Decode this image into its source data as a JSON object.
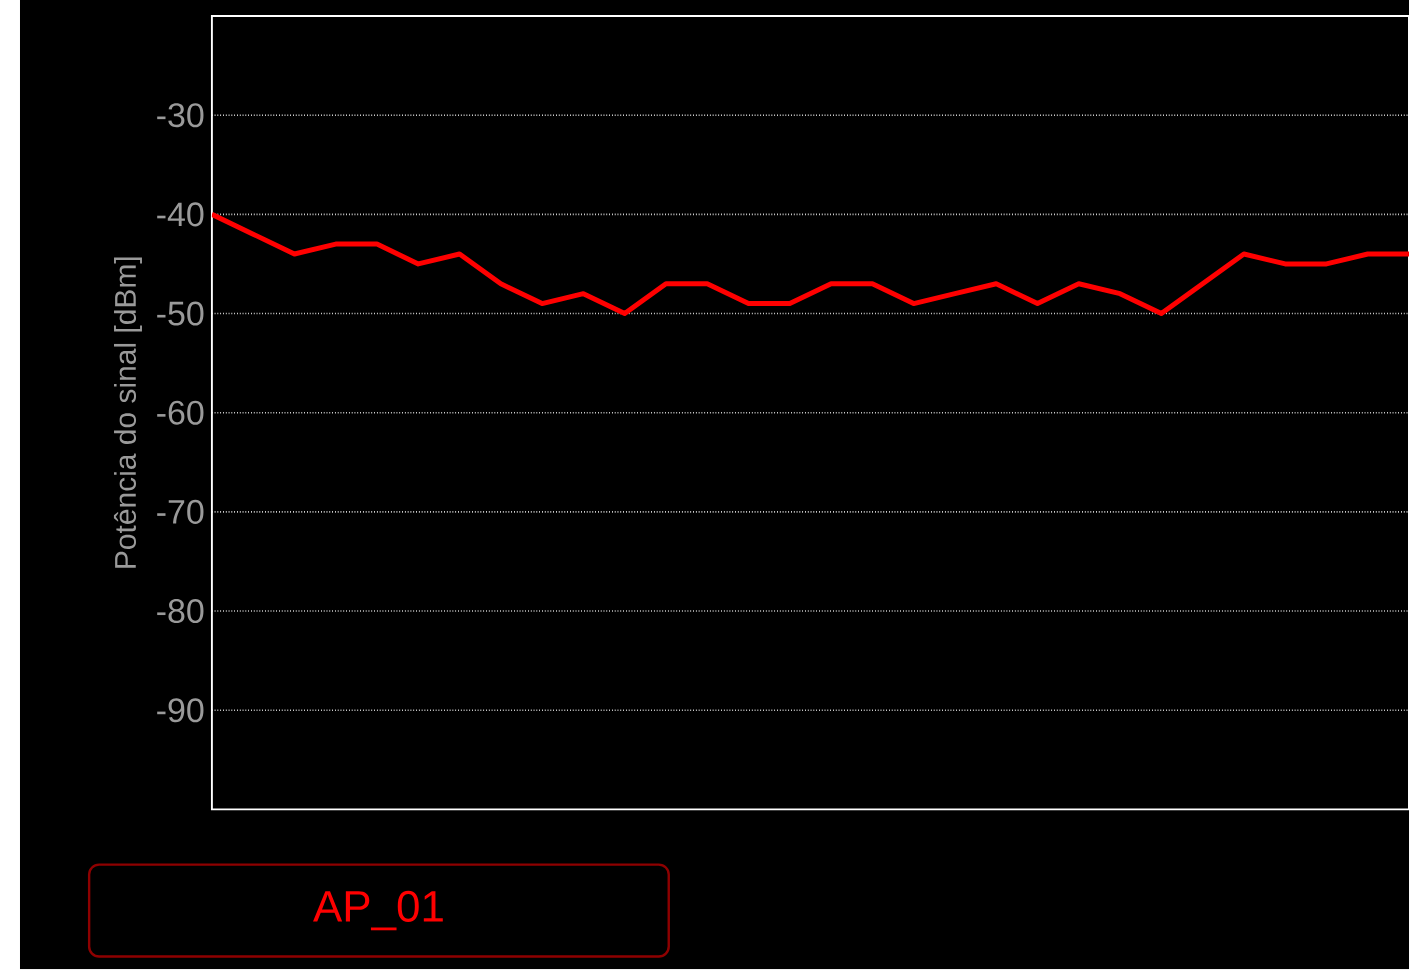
{
  "chart_data": {
    "type": "line",
    "ylabel": "Potência do sinal [dBm]",
    "categories": [
      null,
      null,
      null,
      null,
      null,
      null,
      null,
      null,
      null,
      null,
      null,
      null,
      null,
      null,
      null,
      null,
      null,
      null,
      null,
      null,
      null,
      null,
      null,
      null,
      null,
      null,
      null,
      null,
      null,
      null
    ],
    "series": [
      {
        "name": "AP_01",
        "color": "#ff0000",
        "values": [
          -40,
          -42,
          -44,
          -43,
          -43,
          -45,
          -44,
          -47,
          -49,
          -48,
          -50,
          -47,
          -47,
          -49,
          -49,
          -47,
          -47,
          -49,
          -48,
          -47,
          -49,
          -47,
          -48,
          -50,
          -47,
          -44,
          -45,
          -45,
          -44,
          -44
        ]
      }
    ],
    "ylim": [
      -100,
      -20
    ],
    "yticks": [
      -30,
      -40,
      -50,
      -60,
      -70,
      -80,
      -90
    ],
    "grid": "y",
    "legend": "bottom left",
    "marker": "none",
    "line_style": "solid"
  }
}
